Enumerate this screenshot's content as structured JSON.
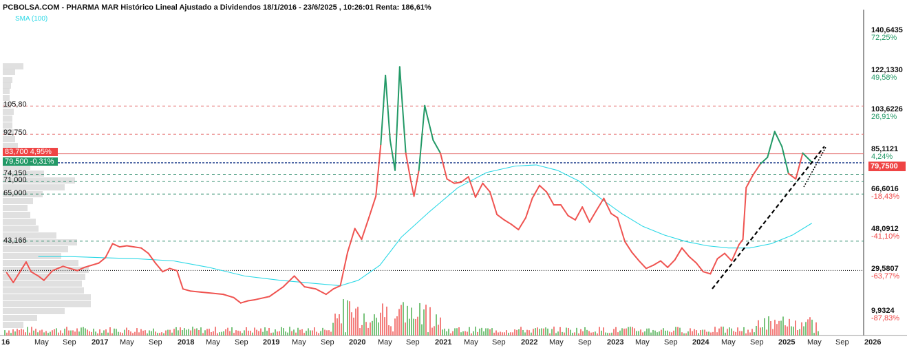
{
  "title": "PCBOLSA.COM - PHARMA MAR Histórico Lineal Ajustado a Dividendos 18/1/2016 - 23/6/2025 , 10:26:01 Renta: 186,61%",
  "sma_legend": "SMA (100)",
  "colors": {
    "price_up": "#229966",
    "price_down": "#ef5350",
    "sma": "#2ad8e6",
    "volume": "#ef5350",
    "volume_alt": "#4caf50",
    "trendline": "#000000",
    "dashed_red": "#e57373",
    "dashed_green": "#2e8b6b",
    "tag_red": "#ef4444",
    "tag_green": "#229966"
  },
  "levels": {
    "l105": "105,80",
    "l92": "92,750",
    "l74": "74,150",
    "l71": "71,000",
    "l65": "65,000",
    "l43": "43,166"
  },
  "tags": {
    "red": "83,700  4,95%",
    "green": "79,500  -0,31%",
    "last": "79,7500"
  },
  "y_axis": [
    {
      "price": "140,6435",
      "pct": "72,25%",
      "positive": true
    },
    {
      "price": "122,1330",
      "pct": "49,58%",
      "positive": true
    },
    {
      "price": "103,6226",
      "pct": "26,91%",
      "positive": true
    },
    {
      "price": "85,1121",
      "pct": "4,24%",
      "positive": true
    },
    {
      "price": "66,6016",
      "pct": "-18,43%",
      "positive": false
    },
    {
      "price": "48,0912",
      "pct": "-41,10%",
      "positive": false
    },
    {
      "price": "29,5807",
      "pct": "-63,77%",
      "positive": false
    },
    {
      "price": "9,9324",
      "pct": "-87,83%",
      "positive": false
    }
  ],
  "x_axis": [
    {
      "label": "16",
      "year": true
    },
    {
      "label": "May",
      "year": false
    },
    {
      "label": "Sep",
      "year": false
    },
    {
      "label": "2017",
      "year": true
    },
    {
      "label": "May",
      "year": false
    },
    {
      "label": "Sep",
      "year": false
    },
    {
      "label": "2018",
      "year": true
    },
    {
      "label": "May",
      "year": false
    },
    {
      "label": "Sep",
      "year": false
    },
    {
      "label": "2019",
      "year": true
    },
    {
      "label": "May",
      "year": false
    },
    {
      "label": "Sep",
      "year": false
    },
    {
      "label": "2020",
      "year": true
    },
    {
      "label": "May",
      "year": false
    },
    {
      "label": "Sep",
      "year": false
    },
    {
      "label": "2021",
      "year": true
    },
    {
      "label": "May",
      "year": false
    },
    {
      "label": "Sep",
      "year": false
    },
    {
      "label": "2022",
      "year": true
    },
    {
      "label": "May",
      "year": false
    },
    {
      "label": "Sep",
      "year": false
    },
    {
      "label": "2023",
      "year": true
    },
    {
      "label": "May",
      "year": false
    },
    {
      "label": "Sep",
      "year": false
    },
    {
      "label": "2024",
      "year": true
    },
    {
      "label": "May",
      "year": false
    },
    {
      "label": "Sep",
      "year": false
    },
    {
      "label": "2025",
      "year": true
    },
    {
      "label": "May",
      "year": false
    },
    {
      "label": "Sep",
      "year": false
    },
    {
      "label": "2026",
      "year": true
    }
  ],
  "chart_data": {
    "type": "line",
    "title": "PCBOLSA.COM - PHARMA MAR Histórico Lineal Ajustado a Dividendos 18/1/2016 - 23/6/2025 , 10:26:01 Renta: 186,61%",
    "xlabel": "",
    "ylabel": "",
    "x_range": [
      "2016-01-18",
      "2026-01-01"
    ],
    "ylim": [
      9.93,
      140.64
    ],
    "grid": false,
    "reference_levels": [
      105.8,
      92.75,
      83.7,
      79.5,
      74.15,
      71.0,
      65.0,
      43.166,
      29.58
    ],
    "series": [
      {
        "name": "",
        "values": [
          [
            "2016-01-18",
            28.5
          ],
          [
            "2016-02-15",
            24.0
          ],
          [
            "2016-03-15",
            29.0
          ],
          [
            "2016-04-10",
            33.5
          ],
          [
            "2016-05-01",
            29.0
          ],
          [
            "2016-06-01",
            27.0
          ],
          [
            "2016-06-25",
            25.0
          ],
          [
            "2016-08-01",
            29.5
          ],
          [
            "2016-09-15",
            31.5
          ],
          [
            "2016-10-15",
            30.5
          ],
          [
            "2016-11-15",
            29.5
          ],
          [
            "2016-12-15",
            31.0
          ],
          [
            "2017-01-15",
            32.0
          ],
          [
            "2017-02-15",
            33.0
          ],
          [
            "2017-03-15",
            35.5
          ],
          [
            "2017-04-15",
            42.0
          ],
          [
            "2017-05-15",
            40.5
          ],
          [
            "2017-06-15",
            41.0
          ],
          [
            "2017-07-15",
            40.5
          ],
          [
            "2017-08-15",
            40.0
          ],
          [
            "2017-09-15",
            37.5
          ],
          [
            "2017-10-15",
            33.0
          ],
          [
            "2017-11-15",
            29.0
          ],
          [
            "2017-12-15",
            30.5
          ],
          [
            "2018-01-15",
            29.5
          ],
          [
            "2018-02-10",
            21.0
          ],
          [
            "2018-03-15",
            20.0
          ],
          [
            "2018-05-01",
            19.5
          ],
          [
            "2018-06-15",
            19.0
          ],
          [
            "2018-08-01",
            18.5
          ],
          [
            "2018-09-15",
            17.0
          ],
          [
            "2018-10-15",
            14.5
          ],
          [
            "2018-11-15",
            15.5
          ],
          [
            "2018-12-15",
            16.0
          ],
          [
            "2019-02-15",
            17.5
          ],
          [
            "2019-04-15",
            22.0
          ],
          [
            "2019-06-01",
            27.0
          ],
          [
            "2019-07-15",
            22.0
          ],
          [
            "2019-09-01",
            21.0
          ],
          [
            "2019-10-15",
            18.5
          ],
          [
            "2019-11-15",
            21.0
          ],
          [
            "2019-12-15",
            22.5
          ],
          [
            "2020-01-15",
            38.0
          ],
          [
            "2020-02-15",
            49.0
          ],
          [
            "2020-03-15",
            44.0
          ],
          [
            "2020-04-15",
            54.0
          ],
          [
            "2020-05-15",
            64.0
          ],
          [
            "2020-06-05",
            88.0
          ],
          [
            "2020-06-25",
            120.0
          ],
          [
            "2020-07-15",
            90.0
          ],
          [
            "2020-08-05",
            76.0
          ],
          [
            "2020-08-25",
            124.0
          ],
          [
            "2020-09-20",
            84.0
          ],
          [
            "2020-10-10",
            72.0
          ],
          [
            "2020-10-25",
            64.0
          ],
          [
            "2020-11-15",
            76.0
          ],
          [
            "2020-12-10",
            106.0
          ],
          [
            "2021-01-15",
            90.0
          ],
          [
            "2021-02-15",
            84.0
          ],
          [
            "2021-03-15",
            72.0
          ],
          [
            "2021-04-15",
            70.0
          ],
          [
            "2021-05-15",
            70.5
          ],
          [
            "2021-06-15",
            73.0
          ],
          [
            "2021-07-15",
            63.5
          ],
          [
            "2021-08-15",
            70.0
          ],
          [
            "2021-09-15",
            66.0
          ],
          [
            "2021-10-15",
            55.5
          ],
          [
            "2021-11-15",
            53.0
          ],
          [
            "2021-12-15",
            51.0
          ],
          [
            "2022-01-15",
            48.5
          ],
          [
            "2022-02-15",
            54.0
          ],
          [
            "2022-03-15",
            63.0
          ],
          [
            "2022-04-15",
            69.0
          ],
          [
            "2022-05-15",
            66.0
          ],
          [
            "2022-06-15",
            60.0
          ],
          [
            "2022-07-15",
            60.0
          ],
          [
            "2022-08-15",
            55.0
          ],
          [
            "2022-09-15",
            53.0
          ],
          [
            "2022-10-15",
            59.0
          ],
          [
            "2022-11-15",
            52.0
          ],
          [
            "2022-12-15",
            57.5
          ],
          [
            "2023-01-15",
            63.0
          ],
          [
            "2023-02-15",
            56.0
          ],
          [
            "2023-03-15",
            54.0
          ],
          [
            "2023-04-15",
            43.0
          ],
          [
            "2023-05-15",
            38.0
          ],
          [
            "2023-06-15",
            34.0
          ],
          [
            "2023-07-15",
            30.5
          ],
          [
            "2023-08-15",
            32.0
          ],
          [
            "2023-09-15",
            34.0
          ],
          [
            "2023-10-15",
            31.0
          ],
          [
            "2023-11-15",
            34.5
          ],
          [
            "2023-12-15",
            40.0
          ],
          [
            "2024-01-15",
            36.0
          ],
          [
            "2024-02-15",
            33.0
          ],
          [
            "2024-03-15",
            29.0
          ],
          [
            "2024-04-15",
            28.0
          ],
          [
            "2024-05-15",
            35.0
          ],
          [
            "2024-06-15",
            37.5
          ],
          [
            "2024-07-15",
            34.0
          ],
          [
            "2024-08-15",
            41.5
          ],
          [
            "2024-09-01",
            44.0
          ],
          [
            "2024-09-15",
            68.0
          ],
          [
            "2024-10-15",
            74.0
          ],
          [
            "2024-11-15",
            79.0
          ],
          [
            "2024-12-15",
            82.0
          ],
          [
            "2025-01-15",
            94.0
          ],
          [
            "2025-02-15",
            87.0
          ],
          [
            "2025-03-15",
            74.5
          ],
          [
            "2025-04-15",
            72.0
          ],
          [
            "2025-05-15",
            84.0
          ],
          [
            "2025-06-23",
            79.75
          ]
        ]
      },
      {
        "name": "SMA (100)",
        "values": [
          [
            "2016-06-01",
            36.0
          ],
          [
            "2016-10-15",
            36.0
          ],
          [
            "2017-03-01",
            35.5
          ],
          [
            "2017-08-01",
            35.0
          ],
          [
            "2018-01-01",
            34.0
          ],
          [
            "2018-06-01",
            31.0
          ],
          [
            "2018-11-01",
            27.0
          ],
          [
            "2019-04-01",
            25.0
          ],
          [
            "2019-09-01",
            23.5
          ],
          [
            "2019-12-15",
            22.5
          ],
          [
            "2020-03-01",
            25.0
          ],
          [
            "2020-06-01",
            32.0
          ],
          [
            "2020-09-01",
            45.0
          ],
          [
            "2021-01-01",
            57.0
          ],
          [
            "2021-05-01",
            68.0
          ],
          [
            "2021-09-01",
            75.0
          ],
          [
            "2022-01-01",
            78.0
          ],
          [
            "2022-04-01",
            78.5
          ],
          [
            "2022-07-01",
            76.0
          ],
          [
            "2022-10-01",
            71.0
          ],
          [
            "2023-01-01",
            63.0
          ],
          [
            "2023-04-01",
            56.0
          ],
          [
            "2023-07-01",
            50.0
          ],
          [
            "2023-10-01",
            46.0
          ],
          [
            "2024-01-01",
            43.0
          ],
          [
            "2024-04-01",
            41.0
          ],
          [
            "2024-07-01",
            40.0
          ],
          [
            "2024-10-01",
            40.0
          ],
          [
            "2025-01-01",
            42.0
          ],
          [
            "2025-04-01",
            46.0
          ],
          [
            "2025-06-23",
            51.5
          ]
        ]
      }
    ]
  }
}
